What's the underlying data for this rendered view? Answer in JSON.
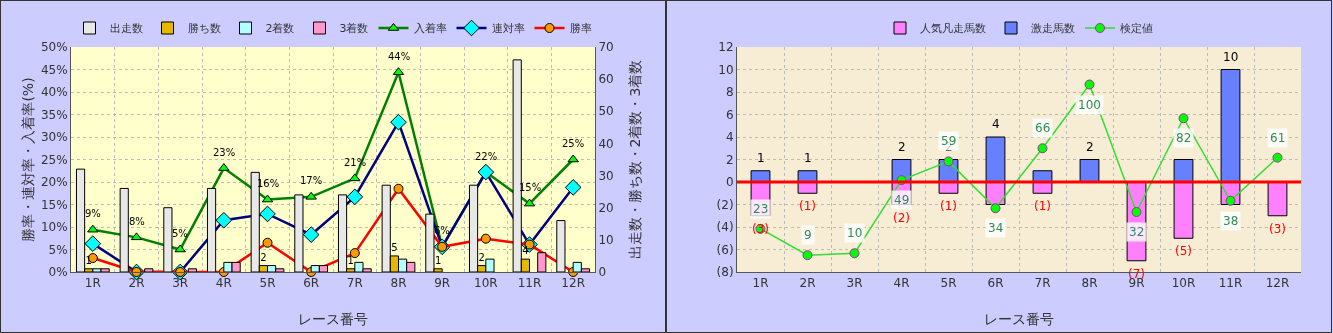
{
  "chart_data": [
    {
      "type": "bar",
      "xlabel": "レース番号",
      "ylabel": "勝率・連対率・入着率(%)",
      "y2label": "出走数・勝ち数・2着数・3着数",
      "categories": [
        "1R",
        "2R",
        "3R",
        "4R",
        "5R",
        "6R",
        "7R",
        "8R",
        "9R",
        "10R",
        "11R",
        "12R"
      ],
      "series": [
        {
          "name": "出走数",
          "axis": "y2",
          "color": "#e8e8e8",
          "values": [
            32,
            26,
            20,
            26,
            31,
            24,
            24,
            27,
            18,
            27,
            66,
            16
          ]
        },
        {
          "name": "勝ち数",
          "axis": "y2",
          "color": "#e6b800",
          "values": [
            1,
            0,
            0,
            0,
            2,
            0,
            1,
            5,
            1,
            2,
            4,
            0
          ],
          "value_labels": [
            "1",
            null,
            null,
            null,
            "2",
            null,
            "1",
            "5",
            "1",
            "2",
            "4",
            null
          ]
        },
        {
          "name": "2着数",
          "axis": "y2",
          "color": "#b3ffff",
          "values": [
            1,
            0,
            0,
            3,
            2,
            2,
            3,
            4,
            0,
            4,
            0,
            3
          ]
        },
        {
          "name": "3着数",
          "axis": "y2",
          "color": "#ff99cc",
          "values": [
            1,
            1,
            1,
            3,
            1,
            2,
            1,
            3,
            0,
            0,
            6,
            1
          ]
        },
        {
          "name": "入着率",
          "type": "line",
          "color": "#008000",
          "colors": [
            "#00ff00",
            "#00ff00",
            "#00ff00",
            "#00ff00",
            "#00ff00",
            "#00ff00",
            "#00ff00",
            "#00ff00",
            "#00ff00",
            "#00ff00",
            "#00ff00",
            "#00ff00"
          ],
          "marker": "triangle",
          "values": [
            9.4,
            7.7,
            5.0,
            23.1,
            16.1,
            16.7,
            20.8,
            44.4,
            5.6,
            22.2,
            15.2,
            25.0
          ],
          "value_labels": [
            "9%",
            "8%",
            "5%",
            "23%",
            "16%",
            "17%",
            "21%",
            "44%",
            "6%",
            "22%",
            "15%",
            "25%"
          ]
        },
        {
          "name": "連対率",
          "type": "line",
          "color": "#000080",
          "colors": [
            "#00ffff",
            "#00ffff",
            "#00ffff",
            "#00ffff",
            "#00ffff",
            "#00ffff",
            "#00ffff",
            "#00ffff",
            "#00ffff",
            "#00ffff",
            "#00ffff",
            "#00ffff"
          ],
          "marker": "diamond",
          "values": [
            6.3,
            0,
            0,
            11.5,
            12.9,
            8.3,
            16.7,
            33.3,
            5.6,
            22.2,
            6.1,
            18.8
          ]
        },
        {
          "name": "勝率",
          "type": "line",
          "color": "#ff0000",
          "colors": [
            "#ff9900",
            "#ff9900",
            "#ff9900",
            "#ff9900",
            "#ff9900",
            "#ff9900",
            "#ff9900",
            "#ff9900",
            "#ff9900",
            "#ff9900",
            "#ff9900",
            "#ff9900"
          ],
          "marker": "circle",
          "values": [
            3.1,
            0,
            0,
            0,
            6.5,
            0,
            4.2,
            18.5,
            5.6,
            7.4,
            6.1,
            0
          ]
        }
      ],
      "ylim": [
        0,
        50
      ],
      "yticks": [
        {
          "value": 0,
          "label": "0%"
        },
        {
          "value": 5,
          "label": "5%"
        },
        {
          "value": 10,
          "label": "10%"
        },
        {
          "value": 15,
          "label": "15%"
        },
        {
          "value": 20,
          "label": "20%"
        },
        {
          "value": 25,
          "label": "25%"
        },
        {
          "value": 30,
          "label": "30%"
        },
        {
          "value": 35,
          "label": "35%"
        },
        {
          "value": 40,
          "label": "40%"
        },
        {
          "value": 45,
          "label": "45%"
        },
        {
          "value": 50,
          "label": "50%"
        }
      ],
      "y2lim": [
        0,
        70
      ],
      "y2ticks": [
        0,
        10,
        20,
        30,
        40,
        50,
        60,
        70
      ],
      "grid": true,
      "legend": "top"
    },
    {
      "type": "bar",
      "stacked": true,
      "xlabel": "レース番号",
      "categories": [
        "1R",
        "2R",
        "3R",
        "4R",
        "5R",
        "6R",
        "7R",
        "8R",
        "9R",
        "10R",
        "11R",
        "12R"
      ],
      "series": [
        {
          "name": "人気凡走馬数",
          "color": "#ff80ff",
          "values": [
            -3,
            -1,
            0,
            -2,
            -1,
            -2,
            -1,
            0,
            -7,
            -5,
            -2,
            -3
          ],
          "value_labels": [
            "(3)",
            "(1)",
            null,
            "(2)",
            "(1)",
            null,
            "(1)",
            null,
            "(7)",
            "(5)",
            null,
            "(3)"
          ]
        },
        {
          "name": "激走馬数",
          "color": "#6680ff",
          "values": [
            1,
            1,
            0,
            2,
            2,
            4,
            1,
            2,
            0,
            2,
            10,
            0
          ],
          "value_labels": [
            "1",
            "1",
            null,
            "2",
            "2",
            "4",
            null,
            "2",
            null,
            null,
            "10",
            null
          ]
        },
        {
          "name": "検定値",
          "type": "line",
          "axis": "y2",
          "color": "#33dd33",
          "colors": [
            "#00ff00",
            "#00ff00",
            "#00ff00",
            "#00ff00",
            "#00ff00",
            "#00ff00",
            "#00ff00",
            "#00ff00",
            "#00ff00",
            "#00ff00",
            "#00ff00",
            "#00ff00"
          ],
          "marker": "circle",
          "values": [
            23,
            9,
            10,
            49,
            59,
            34,
            66,
            100,
            32,
            82,
            38,
            61
          ],
          "value_labels": [
            "23",
            "9",
            "10",
            "49",
            "59",
            "34",
            "66",
            "100",
            "32",
            "82",
            "38",
            "61"
          ]
        }
      ],
      "ylim": [
        -8,
        12
      ],
      "yticks": [
        {
          "value": -8,
          "label": "(8)"
        },
        {
          "value": -6,
          "label": "(6)"
        },
        {
          "value": -4,
          "label": "(4)"
        },
        {
          "value": -2,
          "label": "(2)"
        },
        0,
        2,
        4,
        6,
        8,
        10,
        12
      ],
      "y2lim": [
        0,
        120
      ],
      "ref_lines": [
        {
          "axis": "y",
          "value": 0,
          "color": "#ff0000"
        }
      ],
      "grid": true,
      "legend": "top"
    }
  ]
}
